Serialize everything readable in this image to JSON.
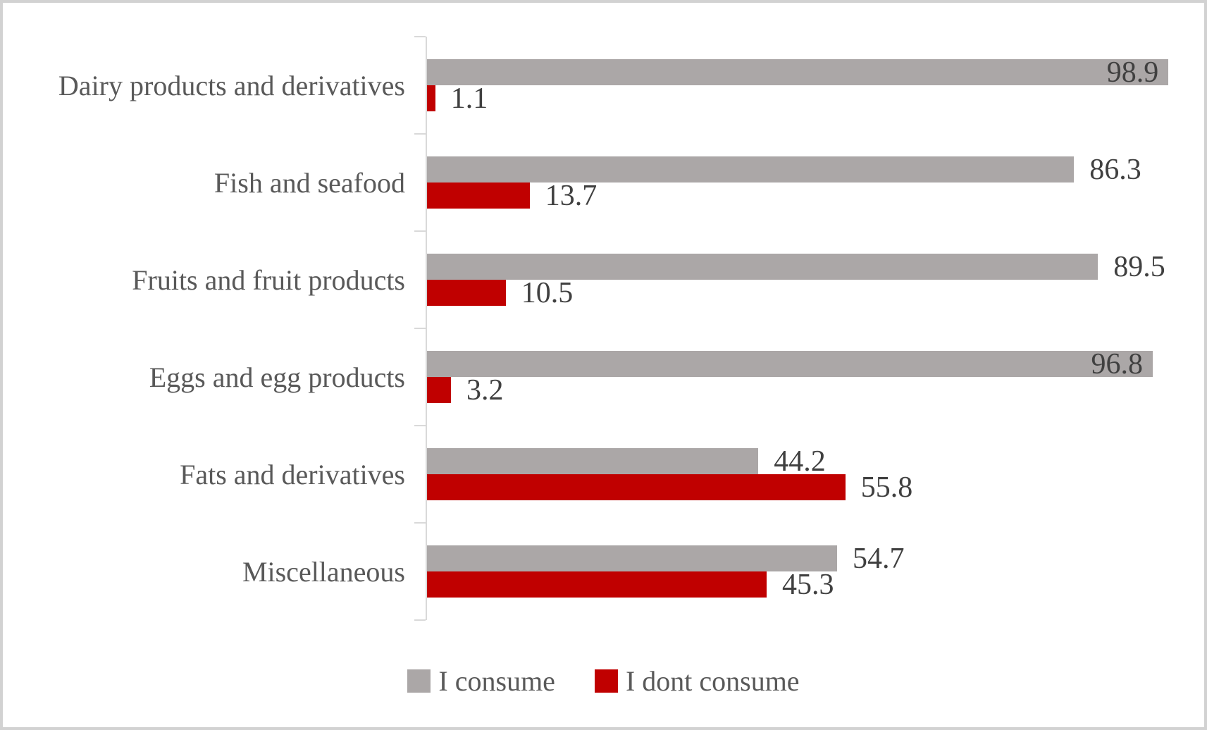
{
  "chart_data": {
    "type": "bar",
    "orientation": "horizontal",
    "title": "",
    "xlabel": "",
    "ylabel": "",
    "xlim": [
      0,
      100
    ],
    "gridlines": false,
    "legend_position": "bottom",
    "value_labels": true,
    "categories": [
      "Dairy products and derivatives",
      "Fish and seafood",
      "Fruits and fruit products",
      "Eggs and egg products",
      "Fats and derivatives",
      "Miscellaneous"
    ],
    "series": [
      {
        "name": "I consume",
        "color": "#aba7a7",
        "values": [
          98.9,
          86.3,
          89.5,
          96.8,
          44.2,
          54.7
        ],
        "label_inside": [
          true,
          false,
          false,
          true,
          false,
          false
        ]
      },
      {
        "name": "I dont consume",
        "color": "#c00000",
        "values": [
          1.1,
          13.7,
          10.5,
          3.2,
          55.8,
          45.3
        ],
        "label_inside": [
          false,
          false,
          false,
          false,
          false,
          false
        ]
      }
    ]
  },
  "colors": {
    "value_label_text": "#404040",
    "category_text": "#595959",
    "legend_text": "#595959",
    "axis_line": "#d9d9d9",
    "frame_border": "#d2d2d2",
    "background": "#ffffff"
  }
}
